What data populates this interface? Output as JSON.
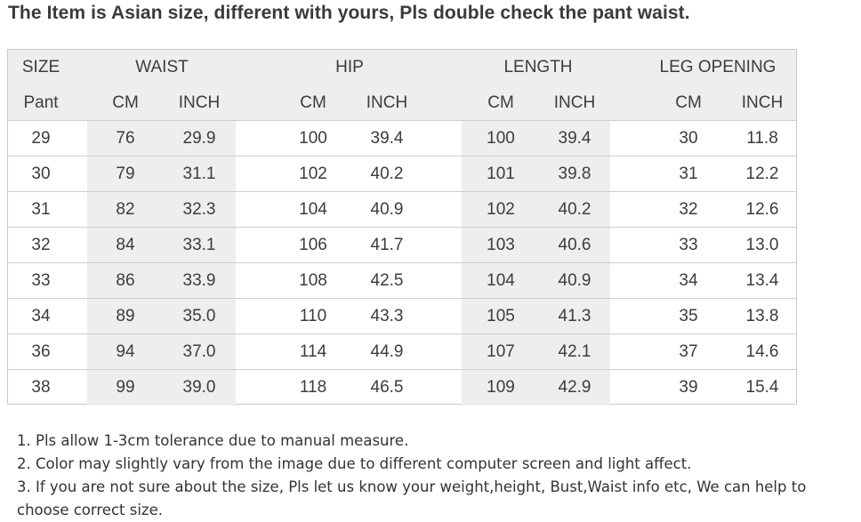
{
  "heading": "The Item is Asian size, different with yours, Pls double check the pant waist.",
  "table": {
    "group_headers": [
      "SIZE",
      "WAIST",
      "HIP",
      "LENGTH",
      "LEG OPENING"
    ],
    "sub_headers": [
      "Pant",
      "CM",
      "INCH",
      "CM",
      "INCH",
      "CM",
      "INCH",
      "CM",
      "INCH"
    ],
    "rows": [
      [
        "29",
        "76",
        "29.9",
        "100",
        "39.4",
        "100",
        "39.4",
        "30",
        "11.8"
      ],
      [
        "30",
        "79",
        "31.1",
        "102",
        "40.2",
        "101",
        "39.8",
        "31",
        "12.2"
      ],
      [
        "31",
        "82",
        "32.3",
        "104",
        "40.9",
        "102",
        "40.2",
        "32",
        "12.6"
      ],
      [
        "32",
        "84",
        "33.1",
        "106",
        "41.7",
        "103",
        "40.6",
        "33",
        "13.0"
      ],
      [
        "33",
        "86",
        "33.9",
        "108",
        "42.5",
        "104",
        "40.9",
        "34",
        "13.4"
      ],
      [
        "34",
        "89",
        "35.0",
        "110",
        "43.3",
        "105",
        "41.3",
        "35",
        "13.8"
      ],
      [
        "36",
        "94",
        "37.0",
        "114",
        "44.9",
        "107",
        "42.1",
        "37",
        "14.6"
      ],
      [
        "38",
        "99",
        "39.0",
        "118",
        "46.5",
        "109",
        "42.9",
        "39",
        "15.4"
      ]
    ]
  },
  "notes": [
    "1. Pls allow 1-3cm tolerance due to manual measure.",
    "2. Color may slightly vary from the image due to different computer screen and light affect.",
    "3. If you are not sure about the size, Pls let us know your weight,height, Bust,Waist info etc, We can help to choose correct size."
  ],
  "colors": {
    "header_bg": "#eeeeee",
    "shaded_column_bg": "#eeeeee",
    "grid_line": "#cfcfcf",
    "text": "#3c3c3c"
  }
}
